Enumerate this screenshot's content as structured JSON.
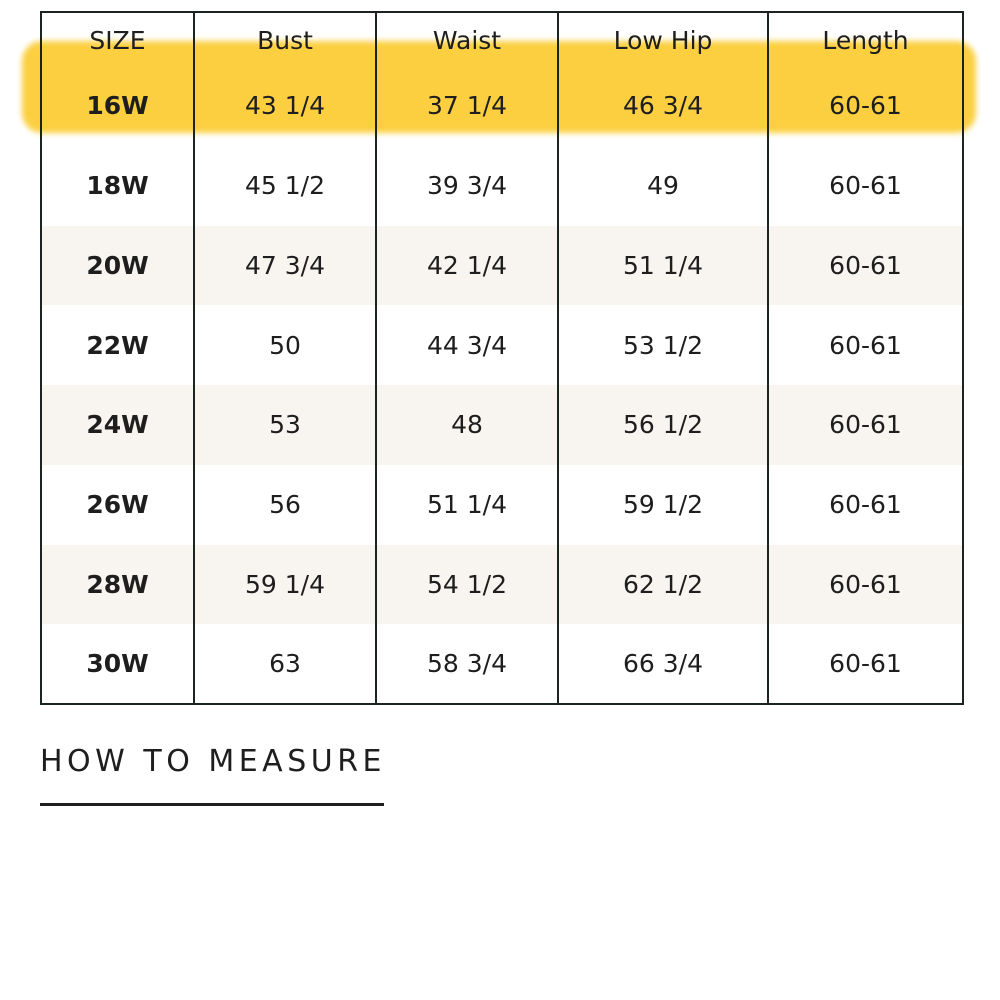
{
  "size_chart": {
    "headers": [
      "SIZE",
      "Bust",
      "Waist",
      "Low Hip",
      "Length"
    ],
    "highlighted_row": 0,
    "highlight_color": "#fbce3a",
    "shaded_row_color": "#f8f4ef",
    "rows": [
      [
        "16W",
        "43 1/4",
        "37 1/4",
        "46 3/4",
        "60-61"
      ],
      [
        "18W",
        "45 1/2",
        "39 3/4",
        "49",
        "60-61"
      ],
      [
        "20W",
        "47 3/4",
        "42 1/4",
        "51 1/4",
        "60-61"
      ],
      [
        "22W",
        "50",
        "44 3/4",
        "53 1/2",
        "60-61"
      ],
      [
        "24W",
        "53",
        "48",
        "56 1/2",
        "60-61"
      ],
      [
        "26W",
        "56",
        "51 1/4",
        "59 1/2",
        "60-61"
      ],
      [
        "28W",
        "59 1/4",
        "54 1/2",
        "62 1/2",
        "60-61"
      ],
      [
        "30W",
        "63",
        "58 3/4",
        "66 3/4",
        "60-61"
      ]
    ]
  },
  "how_to_measure": {
    "label": "HOW TO MEASURE"
  }
}
